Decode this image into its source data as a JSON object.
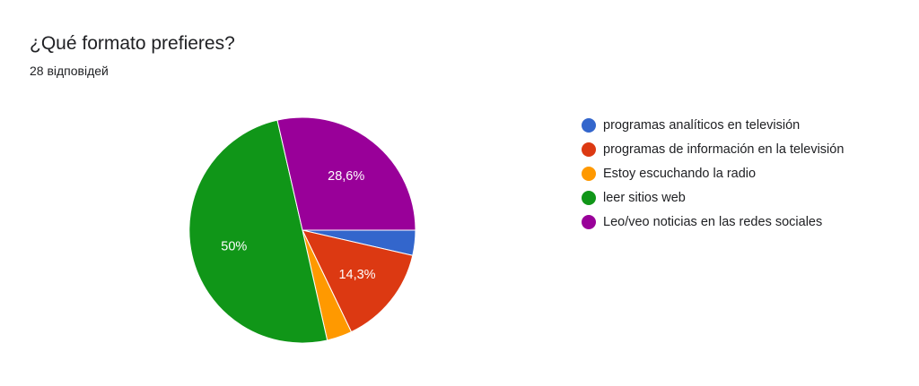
{
  "header": {
    "title": "¿Qué formato prefieres?",
    "responses": "28 відповідей"
  },
  "chart_data": {
    "type": "pie",
    "categories": [
      "programas analíticos en televisión",
      "programas de información en la televisión",
      "Estoy escuchando la radio",
      "leer sitios web",
      "Leo/veo noticias en las redes sociales"
    ],
    "values": [
      3.6,
      14.3,
      3.6,
      50,
      28.6
    ],
    "data_labels": [
      "",
      "14,3%",
      "",
      "50%",
      "28,6%"
    ],
    "colors": [
      "#3366cc",
      "#dc3912",
      "#ff9900",
      "#109618",
      "#990099"
    ],
    "legend_position": "right",
    "start_angle_deg": 0,
    "direction": "clockwise"
  }
}
